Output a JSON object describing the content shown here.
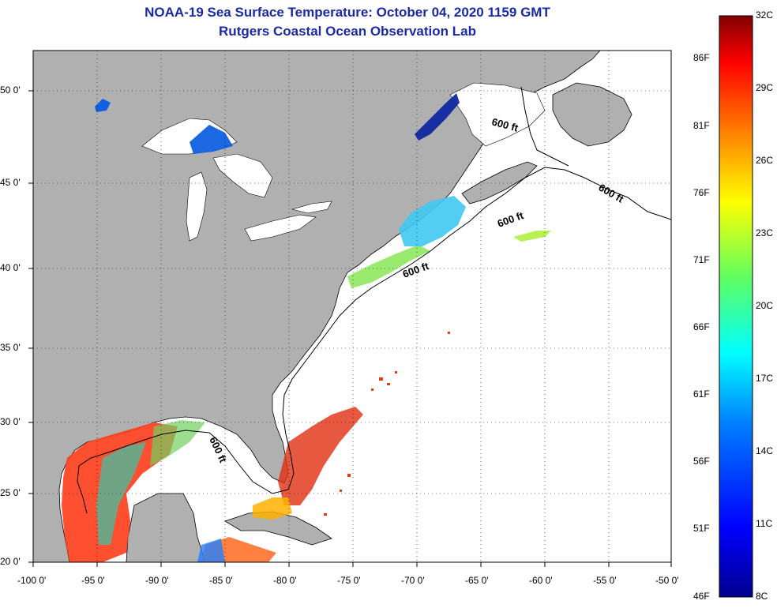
{
  "header": {
    "title": "NOAA-19 Sea Surface Temperature:  October 04, 2020 1159 GMT",
    "subtitle": "Rutgers Coastal Ocean Observation Lab"
  },
  "map": {
    "lon_range": [
      -100,
      -50
    ],
    "lat_range": [
      20,
      52.5
    ],
    "lon_ticks": [
      "-100 0'",
      "-95 0'",
      "-90 0'",
      "-85 0'",
      "-80 0'",
      "-75 0'",
      "-70 0'",
      "-65 0'",
      "-60 0'",
      "-55 0'",
      "-50 0'"
    ],
    "lat_ticks": [
      "50 0'",
      "45 0'",
      "40 0'",
      "35 0'",
      "30 0'",
      "25 0'",
      "20 0'"
    ],
    "contour_label": "600 ft",
    "land_color": "#b0b0b0",
    "ocean_color": "#ffffff"
  },
  "colorbar": {
    "celsius": [
      "32C",
      "29C",
      "26C",
      "23C",
      "20C",
      "17C",
      "14C",
      "11C",
      "8C"
    ],
    "fahrenheit": [
      "86F",
      "81F",
      "76F",
      "71F",
      "66F",
      "61F",
      "56F",
      "51F",
      "46F"
    ],
    "colors": [
      "#7f0000",
      "#d40000",
      "#ff5500",
      "#ffaa00",
      "#ffff00",
      "#aaff55",
      "#55ffaa",
      "#00ffff",
      "#00aaff",
      "#0055ff",
      "#0000ff",
      "#0000aa"
    ]
  }
}
